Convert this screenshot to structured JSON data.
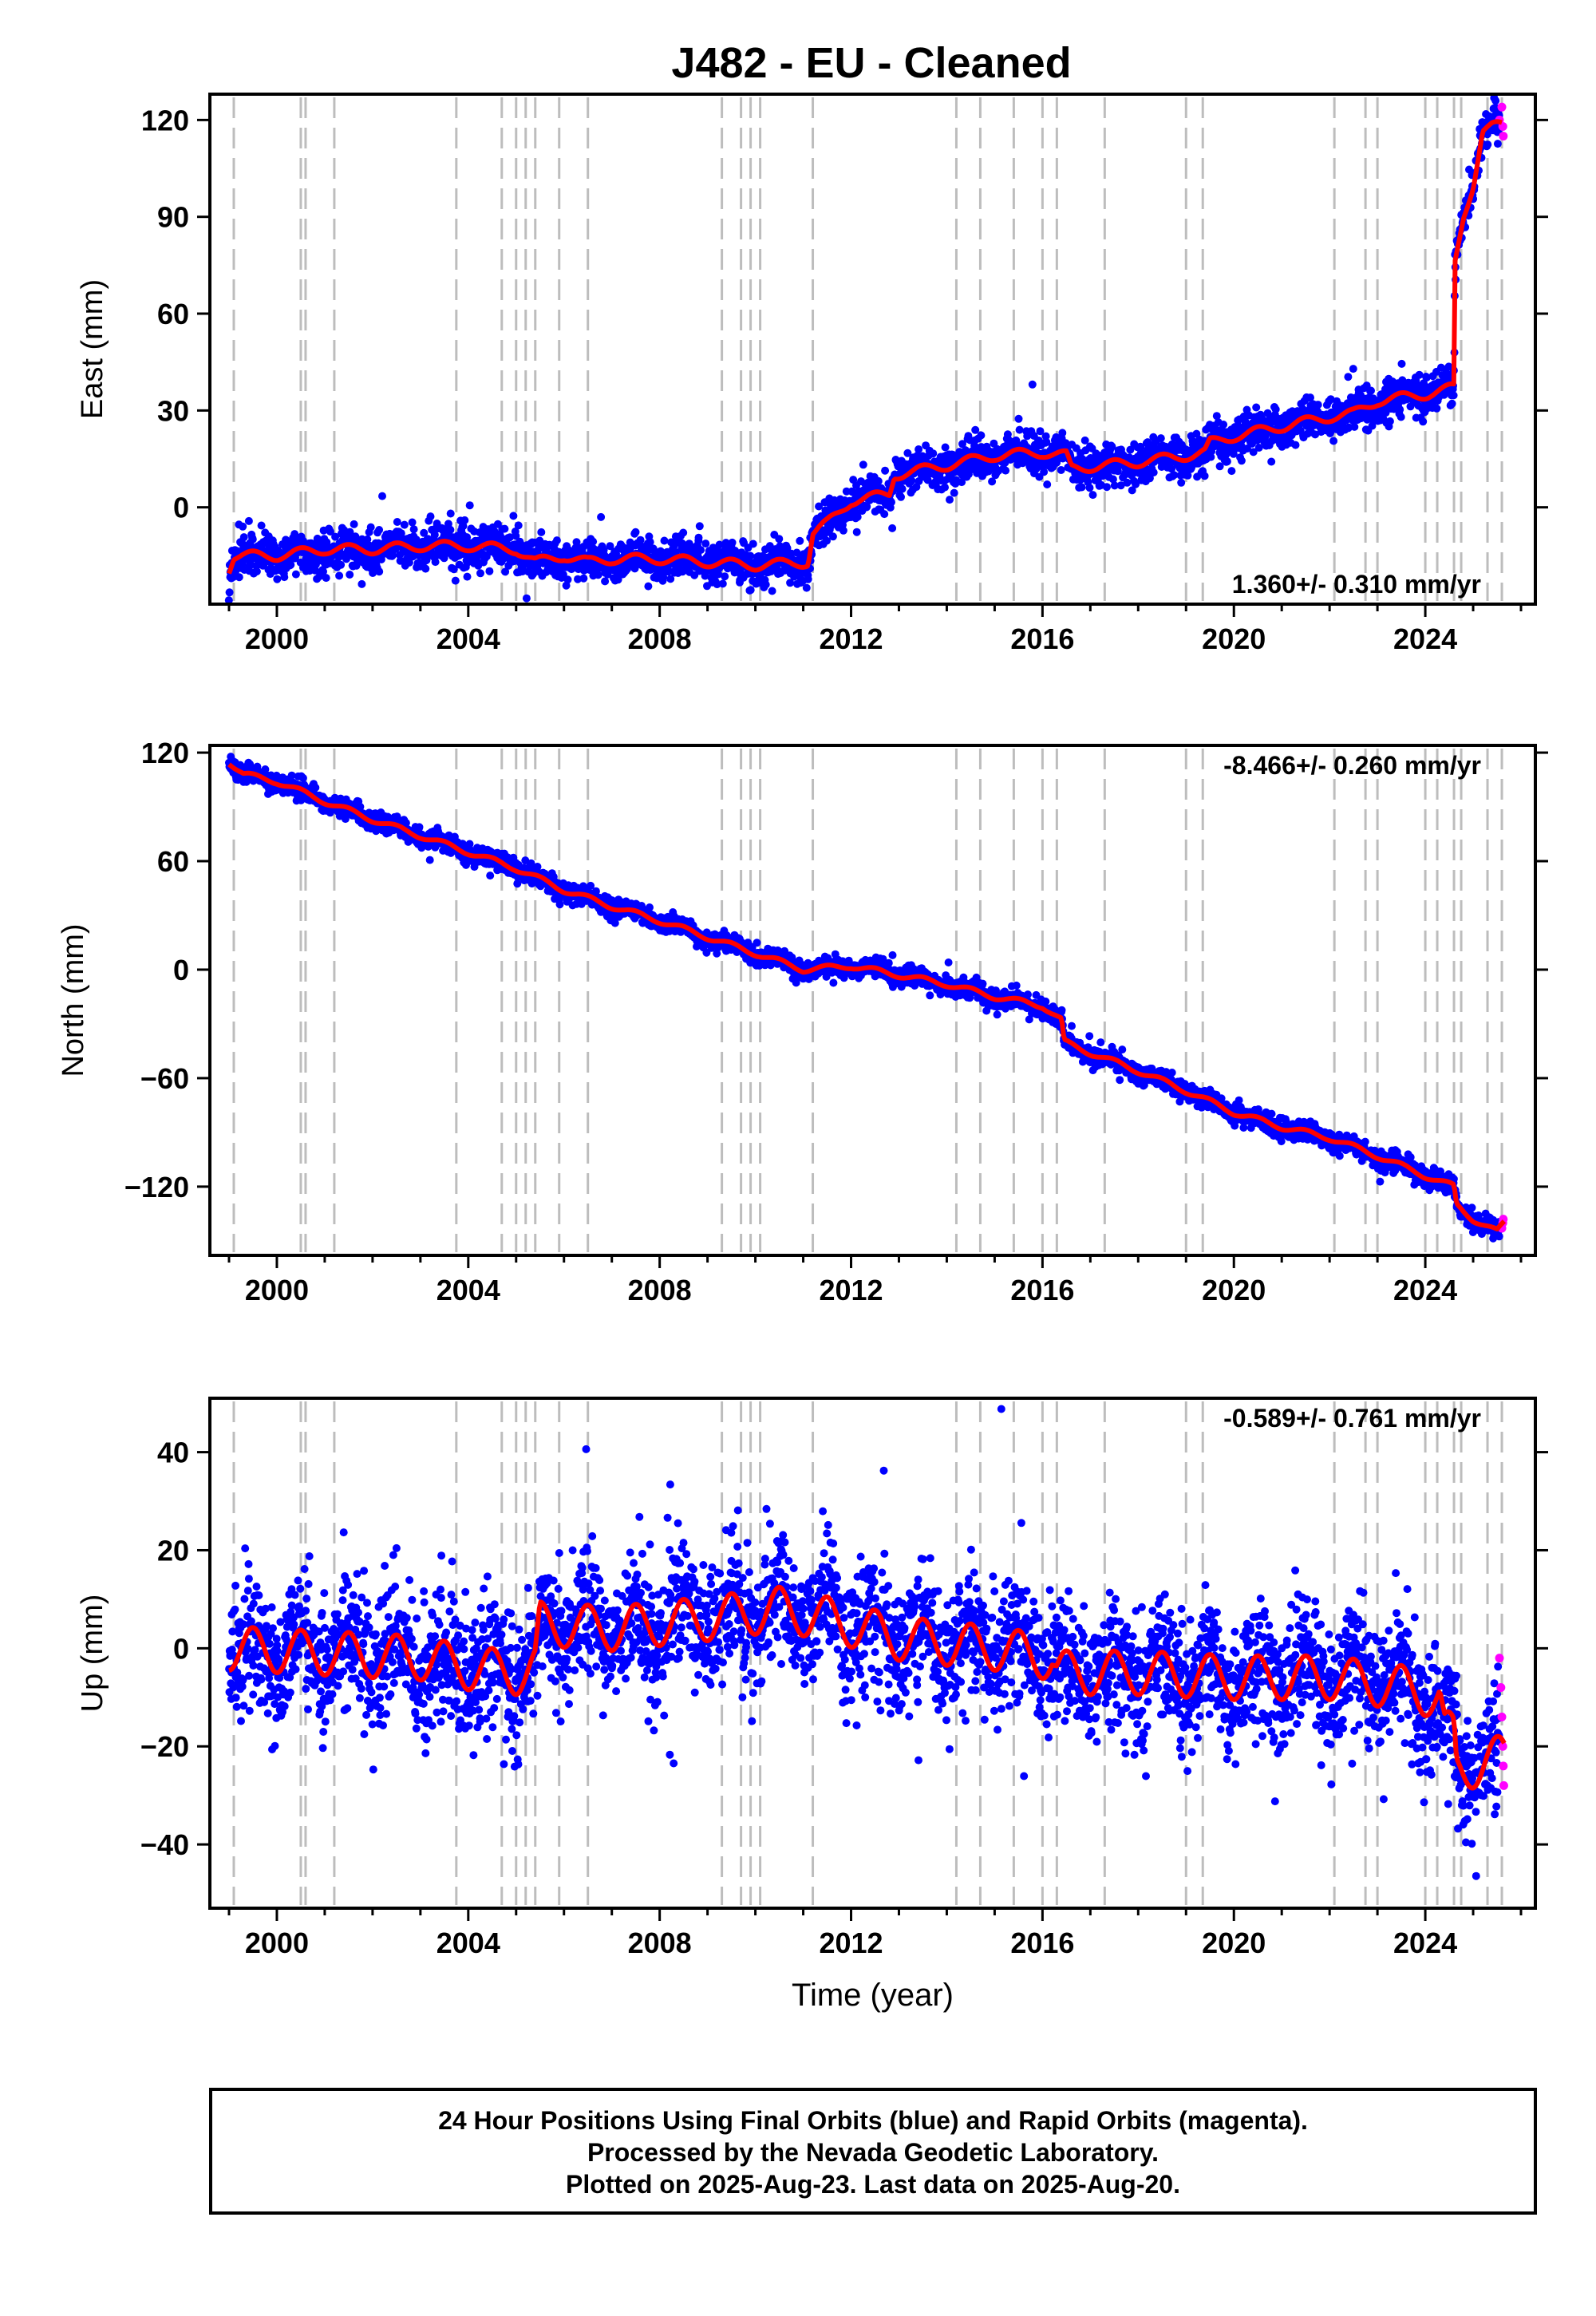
{
  "title": "J482  - EU - Cleaned",
  "colors": {
    "final_orbits": "#0000ff",
    "rapid_orbits": "#ff00ff",
    "model": "#ff0000",
    "event_lines": "#bdbdbd"
  },
  "footer": {
    "line1": "24 Hour Positions Using Final Orbits (blue) and Rapid Orbits (magenta).",
    "line2": "Processed by the Nevada Geodetic Laboratory.",
    "line3": "Plotted on 2025-Aug-23. Last data on 2025-Aug-20."
  },
  "chart_data": [
    {
      "type": "scatter",
      "ylabel": "East (mm)",
      "xlabel": "",
      "rate_label": "1.360+/- 0.310 mm/yr",
      "rate_position": "bottom-right",
      "xlim": [
        1998.6,
        2026.3
      ],
      "ylim": [
        -30,
        128
      ],
      "yticks": [
        0,
        30,
        60,
        90,
        120
      ],
      "yticklabels": [
        "0",
        "30",
        "60",
        "90",
        "120"
      ],
      "xticks": [
        2000,
        2004,
        2008,
        2012,
        2016,
        2020,
        2024
      ],
      "xticklabels": [
        "2000",
        "2004",
        "2008",
        "2012",
        "2016",
        "2020",
        "2024"
      ],
      "noise_mm": 3.0,
      "model": {
        "x": [
          1999.0,
          1999.1,
          2000.0,
          2001.0,
          2002.0,
          2003.0,
          2004.0,
          2005.0,
          2005.4,
          2006.0,
          2006.5,
          2007.0,
          2008.0,
          2009.0,
          2010.0,
          2011.1,
          2011.2,
          2011.5,
          2012.0,
          2012.8,
          2012.9,
          2014.0,
          2015.0,
          2016.0,
          2016.5,
          2016.6,
          2018.0,
          2019.0,
          2019.4,
          2019.5,
          2020.0,
          2021.0,
          2022.0,
          2022.5,
          2023.0,
          2024.0,
          2024.6,
          2024.62,
          2024.8,
          2025.0,
          2025.2,
          2025.4,
          2025.6
        ],
        "y": [
          -19,
          -15,
          -15,
          -13,
          -13,
          -12,
          -12,
          -13,
          -17,
          -15,
          -17,
          -16,
          -16,
          -17,
          -18,
          -17,
          -8,
          -5,
          2,
          4,
          10,
          13,
          16,
          17,
          16,
          12,
          14,
          16,
          17,
          20,
          22,
          25,
          28,
          29,
          33,
          35,
          37,
          75,
          90,
          100,
          117,
          118,
          118
        ]
      },
      "seasonal_amp_mm": 1.5,
      "rapid_points": {
        "x": [
          2025.55,
          2025.6,
          2025.62,
          2025.63
        ],
        "y": [
          120,
          124,
          118,
          115
        ]
      }
    },
    {
      "type": "scatter",
      "ylabel": "North (mm)",
      "xlabel": "",
      "rate_label": "-8.466+/- 0.260 mm/yr",
      "rate_position": "top-right",
      "xlim": [
        1998.6,
        2026.3
      ],
      "ylim": [
        -158,
        124
      ],
      "yticks": [
        -120,
        -60,
        0,
        60,
        120
      ],
      "yticklabels": [
        "−120",
        "−60",
        "0",
        "60",
        "120"
      ],
      "xticks": [
        2000,
        2004,
        2008,
        2012,
        2016,
        2020,
        2024
      ],
      "xticklabels": [
        "2000",
        "2004",
        "2008",
        "2012",
        "2016",
        "2020",
        "2024"
      ],
      "noise_mm": 2.5,
      "model": {
        "x": [
          1999.0,
          1999.3,
          2000.0,
          2001.0,
          2002.0,
          2003.0,
          2004.0,
          2005.0,
          2006.0,
          2007.0,
          2008.0,
          2009.0,
          2010.0,
          2011.0,
          2012.0,
          2013.0,
          2014.0,
          2015.0,
          2016.0,
          2016.4,
          2016.45,
          2017.0,
          2018.0,
          2019.0,
          2020.0,
          2021.0,
          2022.0,
          2023.0,
          2024.0,
          2024.6,
          2024.65,
          2025.0,
          2025.5,
          2025.65
        ],
        "y": [
          115,
          108,
          104,
          93,
          83,
          74,
          65,
          56,
          44,
          35,
          27,
          18,
          9,
          0,
          2,
          -3,
          -8,
          -15,
          -20,
          -28,
          -40,
          -46,
          -56,
          -67,
          -79,
          -87,
          -93,
          -103,
          -114,
          -120,
          -130,
          -138,
          -145,
          -140
        ]
      },
      "seasonal_amp_mm": 1.5,
      "rapid_points": {
        "x": [
          2025.6,
          2025.62,
          2025.63
        ],
        "y": [
          -143,
          -140,
          -138
        ]
      }
    },
    {
      "type": "scatter",
      "ylabel": "Up (mm)",
      "xlabel": "Time (year)",
      "rate_label": "-0.589+/- 0.761 mm/yr",
      "rate_position": "top-right",
      "xlim": [
        1998.6,
        2026.3
      ],
      "ylim": [
        -53,
        51
      ],
      "yticks": [
        -40,
        -20,
        0,
        20,
        40
      ],
      "yticklabels": [
        "−40",
        "−20",
        "0",
        "20",
        "40"
      ],
      "xticks": [
        2000,
        2004,
        2008,
        2012,
        2016,
        2020,
        2024
      ],
      "xticklabels": [
        "2000",
        "2004",
        "2008",
        "2012",
        "2016",
        "2020",
        "2024"
      ],
      "noise_mm": 6.5,
      "model": {
        "x": [
          1999.0,
          2001.0,
          2003.0,
          2004.0,
          2005.0,
          2005.4,
          2005.5,
          2007.0,
          2009.0,
          2010.5,
          2011.5,
          2013.0,
          2015.0,
          2016.2,
          2016.3,
          2018.0,
          2020.0,
          2022.0,
          2023.5,
          2024.3,
          2024.4,
          2024.6,
          2024.65,
          2025.0,
          2025.65
        ],
        "y": [
          0,
          -1,
          -2,
          -4,
          -5,
          -4,
          5,
          4,
          6,
          8,
          6,
          2,
          0,
          -2,
          -5,
          -5,
          -6,
          -6,
          -8,
          -10,
          -17,
          -18,
          -25,
          -24,
          -22
        ]
      },
      "seasonal_amp_mm": 4.5,
      "rapid_points": {
        "x": [
          2025.55,
          2025.58,
          2025.6,
          2025.62,
          2025.63,
          2025.64
        ],
        "y": [
          -2,
          -8,
          -14,
          -20,
          -24,
          -28
        ]
      }
    }
  ],
  "event_lines_years": [
    1999.1,
    2000.5,
    2000.6,
    2001.2,
    2003.75,
    2004.7,
    2005.0,
    2005.2,
    2005.4,
    2005.9,
    2006.5,
    2009.3,
    2009.7,
    2009.9,
    2010.1,
    2011.2,
    2014.2,
    2014.7,
    2015.4,
    2016.0,
    2016.3,
    2017.3,
    2019.0,
    2019.35,
    2022.1,
    2022.75,
    2023.0,
    2024.0,
    2024.25,
    2024.6,
    2024.75,
    2025.3,
    2025.6
  ]
}
